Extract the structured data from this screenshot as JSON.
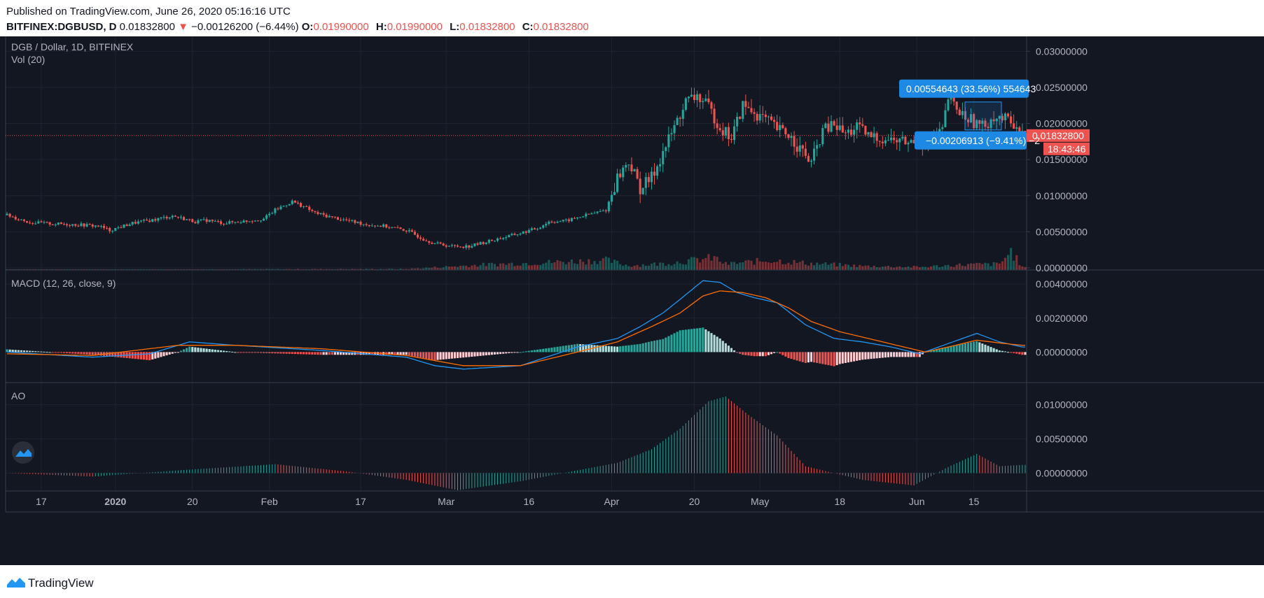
{
  "header": {
    "published": "Published on TradingView.com, June 26, 2020 05:16:16 UTC",
    "symbol": "BITFINEX:DGBUSD, D",
    "last": "0.01832800",
    "change_arrow": "▼",
    "change": "−0.00126200 (−6.44%)",
    "o_label": "O:",
    "o_value": "0.01990000",
    "h_label": "H:",
    "h_value": "0.01990000",
    "l_label": "L:",
    "l_value": "0.01832800",
    "c_label": "C:",
    "c_value": "0.01832800"
  },
  "footer": {
    "brand": "TradingView"
  },
  "colors": {
    "background": "#131722",
    "up": "#26a69a",
    "down": "#ef5350",
    "macd_line": "#2196f3",
    "signal_line": "#ff6d00",
    "ao_up": "#26a69a",
    "ao_down": "#ef5350",
    "label_blue": "#1e88e5"
  },
  "chart_data": [
    {
      "type": "candlestick",
      "pane": "price",
      "title": "DGB / Dollar, 1D, BITFINEX",
      "indicator_label": "Vol (20)",
      "ylim": [
        0,
        0.031
      ],
      "y_ticks": [
        "0.03000000",
        "0.02500000",
        "0.02000000",
        "0.01500000",
        "0.01000000",
        "0.00500000",
        "0.00000000"
      ],
      "last_price_label": "0.01832800",
      "countdown_label": "18:43:46",
      "measure_up_label": "0.00554643 (33.56%) 554643",
      "measure_down_label": "−0.00206913 (−9.41%) −2",
      "x_ticks": [
        "17",
        "2020",
        "20",
        "Feb",
        "17",
        "Mar",
        "16",
        "Apr",
        "20",
        "May",
        "18",
        "Jun",
        "15"
      ],
      "close_path": [
        [
          0,
          0.0073
        ],
        [
          8,
          0.0063
        ],
        [
          16,
          0.0061
        ],
        [
          24,
          0.006
        ],
        [
          32,
          0.0058
        ],
        [
          36,
          0.0052
        ],
        [
          44,
          0.0062
        ],
        [
          52,
          0.0067
        ],
        [
          58,
          0.0072
        ],
        [
          62,
          0.0068
        ],
        [
          66,
          0.0064
        ],
        [
          70,
          0.0066
        ],
        [
          76,
          0.0062
        ],
        [
          84,
          0.0065
        ],
        [
          90,
          0.0068
        ],
        [
          94,
          0.008
        ],
        [
          100,
          0.0092
        ],
        [
          104,
          0.0085
        ],
        [
          108,
          0.0076
        ],
        [
          114,
          0.007
        ],
        [
          120,
          0.0065
        ],
        [
          126,
          0.006
        ],
        [
          132,
          0.0058
        ],
        [
          140,
          0.0052
        ],
        [
          146,
          0.004
        ],
        [
          150,
          0.0034
        ],
        [
          156,
          0.003
        ],
        [
          162,
          0.003
        ],
        [
          168,
          0.0036
        ],
        [
          174,
          0.0042
        ],
        [
          180,
          0.0048
        ],
        [
          186,
          0.0055
        ],
        [
          190,
          0.0064
        ],
        [
          196,
          0.0065
        ],
        [
          202,
          0.0072
        ],
        [
          210,
          0.008
        ],
        [
          214,
          0.0125
        ],
        [
          218,
          0.0148
        ],
        [
          222,
          0.011
        ],
        [
          226,
          0.0125
        ],
        [
          230,
          0.016
        ],
        [
          234,
          0.0195
        ],
        [
          238,
          0.023
        ],
        [
          242,
          0.0238
        ],
        [
          246,
          0.0222
        ],
        [
          250,
          0.0195
        ],
        [
          254,
          0.018
        ],
        [
          258,
          0.0225
        ],
        [
          262,
          0.0215
        ],
        [
          266,
          0.0205
        ],
        [
          270,
          0.0192
        ],
        [
          274,
          0.0185
        ],
        [
          278,
          0.0165
        ],
        [
          282,
          0.0145
        ],
        [
          286,
          0.019
        ],
        [
          290,
          0.0198
        ],
        [
          294,
          0.0185
        ],
        [
          298,
          0.0195
        ],
        [
          302,
          0.0182
        ],
        [
          306,
          0.018
        ],
        [
          312,
          0.0176
        ],
        [
          318,
          0.0173
        ],
        [
          324,
          0.0176
        ],
        [
          328,
          0.019
        ],
        [
          330,
          0.0235
        ],
        [
          334,
          0.0215
        ],
        [
          338,
          0.0205
        ],
        [
          342,
          0.0195
        ],
        [
          346,
          0.021
        ],
        [
          350,
          0.0205
        ],
        [
          354,
          0.0199
        ],
        [
          356,
          0.0183
        ]
      ],
      "volume_path": [
        [
          0,
          0.03
        ],
        [
          40,
          0.05
        ],
        [
          90,
          0.08
        ],
        [
          140,
          0.1
        ],
        [
          168,
          0.55
        ],
        [
          210,
          1.0
        ],
        [
          218,
          0.45
        ],
        [
          230,
          0.65
        ],
        [
          238,
          0.9
        ],
        [
          248,
          1.25
        ],
        [
          252,
          0.6
        ],
        [
          268,
          1.0
        ],
        [
          280,
          0.7
        ],
        [
          300,
          0.4
        ],
        [
          320,
          0.3
        ],
        [
          336,
          0.55
        ],
        [
          348,
          0.6
        ],
        [
          352,
          1.9
        ],
        [
          356,
          0.3
        ]
      ]
    },
    {
      "type": "line",
      "pane": "macd",
      "title": "MACD (12, 26, close, 9)",
      "ylim": [
        -0.0013,
        0.0045
      ],
      "y_ticks": [
        "0.00400000",
        "0.00200000",
        "0.00000000"
      ],
      "series": [
        {
          "key": "macd",
          "path": [
            [
              0,
              0
            ],
            [
              30,
              -0.0003
            ],
            [
              50,
              -0.0001
            ],
            [
              64,
              0.0006
            ],
            [
              80,
              0.0004
            ],
            [
              110,
              0.0001
            ],
            [
              140,
              -0.0003
            ],
            [
              150,
              -0.0008
            ],
            [
              160,
              -0.001
            ],
            [
              180,
              -0.0008
            ],
            [
              200,
              0.0003
            ],
            [
              214,
              0.0008
            ],
            [
              222,
              0.0015
            ],
            [
              230,
              0.0023
            ],
            [
              236,
              0.0031
            ],
            [
              244,
              0.0042
            ],
            [
              250,
              0.0041
            ],
            [
              256,
              0.0035
            ],
            [
              262,
              0.0032
            ],
            [
              270,
              0.0029
            ],
            [
              280,
              0.0016
            ],
            [
              290,
              0.0008
            ],
            [
              300,
              0.0006
            ],
            [
              310,
              0.0003
            ],
            [
              320,
              -0.0001
            ],
            [
              330,
              0.0005
            ],
            [
              340,
              0.0011
            ],
            [
              348,
              0.0006
            ],
            [
              356,
              0.0003
            ]
          ]
        },
        {
          "key": "signal",
          "path": [
            [
              0,
              -0.0001
            ],
            [
              30,
              -0.0002
            ],
            [
              60,
              0.0004
            ],
            [
              80,
              0.0004
            ],
            [
              110,
              0.0002
            ],
            [
              140,
              -0.0002
            ],
            [
              160,
              -0.0008
            ],
            [
              180,
              -0.0008
            ],
            [
              200,
              0.0
            ],
            [
              214,
              0.0006
            ],
            [
              226,
              0.0015
            ],
            [
              236,
              0.0023
            ],
            [
              244,
              0.0033
            ],
            [
              250,
              0.0036
            ],
            [
              258,
              0.0035
            ],
            [
              266,
              0.0032
            ],
            [
              274,
              0.0026
            ],
            [
              282,
              0.0018
            ],
            [
              292,
              0.0012
            ],
            [
              302,
              0.0008
            ],
            [
              312,
              0.0004
            ],
            [
              322,
              0.0
            ],
            [
              330,
              0.0003
            ],
            [
              340,
              0.0007
            ],
            [
              350,
              0.0005
            ],
            [
              356,
              0.0004
            ]
          ]
        }
      ]
    },
    {
      "type": "bar",
      "pane": "ao",
      "title": "AO",
      "ylim": [
        -0.0018,
        0.012
      ],
      "y_ticks": [
        "0.01000000",
        "0.00500000",
        "0.00000000"
      ],
      "path": [
        [
          0,
          0
        ],
        [
          30,
          -0.0005
        ],
        [
          60,
          0.0004
        ],
        [
          94,
          0.0013
        ],
        [
          120,
          0.0002
        ],
        [
          140,
          -0.001
        ],
        [
          158,
          -0.0025
        ],
        [
          180,
          -0.0012
        ],
        [
          200,
          0.0004
        ],
        [
          214,
          0.0015
        ],
        [
          226,
          0.0035
        ],
        [
          236,
          0.0065
        ],
        [
          246,
          0.0105
        ],
        [
          252,
          0.0112
        ],
        [
          260,
          0.0085
        ],
        [
          270,
          0.0055
        ],
        [
          280,
          0.001
        ],
        [
          300,
          -0.001
        ],
        [
          318,
          -0.0018
        ],
        [
          330,
          0.0009
        ],
        [
          340,
          0.0028
        ],
        [
          348,
          0.001
        ],
        [
          356,
          0.0012
        ]
      ]
    }
  ]
}
